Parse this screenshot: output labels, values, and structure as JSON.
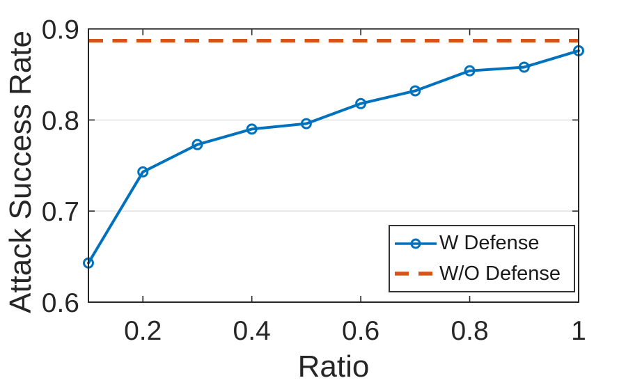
{
  "chart_data": {
    "type": "line",
    "title": "",
    "xlabel": "Ratio",
    "ylabel": "Attack Success Rate",
    "xlim": [
      0.1,
      1.0
    ],
    "ylim": [
      0.6,
      0.9
    ],
    "x_ticks": [
      0.2,
      0.4,
      0.6,
      0.8,
      1.0
    ],
    "x_tick_labels": [
      "0.2",
      "0.4",
      "0.6",
      "0.8",
      "1"
    ],
    "y_ticks": [
      0.6,
      0.7,
      0.8,
      0.9
    ],
    "y_tick_labels": [
      "0.6",
      "0.7",
      "0.8",
      "0.9"
    ],
    "grid": "horizontal-only",
    "legend_position": "bottom-right",
    "x": [
      0.1,
      0.2,
      0.3,
      0.4,
      0.5,
      0.6,
      0.7,
      0.8,
      0.9,
      1.0
    ],
    "series": [
      {
        "name": "W Defense",
        "style": "solid-line-circle-markers",
        "color": "#0072BD",
        "values": [
          0.643,
          0.743,
          0.773,
          0.79,
          0.796,
          0.818,
          0.832,
          0.854,
          0.858,
          0.876
        ]
      },
      {
        "name": "W/O Defense",
        "style": "dashed-horizontal-line",
        "color": "#D95319",
        "value": 0.887
      }
    ],
    "colors": {
      "axis": "#262626",
      "tick_text": "#262626",
      "grid": "#e0e0e0",
      "background": "#ffffff"
    }
  }
}
